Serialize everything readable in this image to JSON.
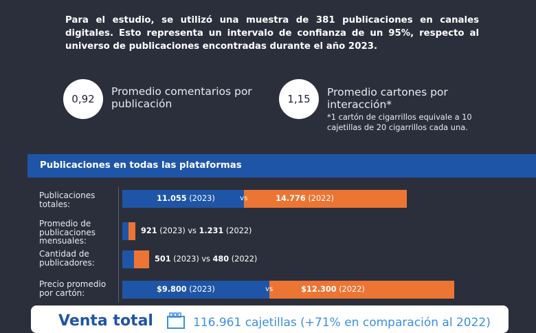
{
  "intro": "Para el estudio, se utilizó una muestra de 381 publicaciones en canales digitales. Esto representa un intervalo de confianza de un 95%, respecto al universo de publicaciones encontradas durante el año 2023.",
  "stats": [
    {
      "value": "0,92",
      "label": "Promedio comentarios por publicación",
      "note": ""
    },
    {
      "value": "1,15",
      "label": "Promedio cartones por interacción*",
      "note": "*1 cartón de cigarrillos equivale a 10 cajetillas de 20 cigarrillos cada una."
    }
  ],
  "section_title": "Publicaciones en todas las plataformas",
  "chart_data": {
    "type": "bar",
    "title": "Publicaciones en todas las plataformas",
    "series_names": [
      "(2023)",
      "(2022)"
    ],
    "colors": {
      "2023": "#1f55a6",
      "2022": "#ec7533"
    },
    "rows": [
      {
        "label": "Publicaciones totales:",
        "v2023": 11055,
        "v2022": 14776,
        "t2023": "11.055",
        "t2022": "14.776",
        "inside": true
      },
      {
        "label": "Promedio de publicaciones mensuales:",
        "v2023": 921,
        "v2022": 1231,
        "t2023": "921",
        "t2022": "1.231",
        "inside": false
      },
      {
        "label": "Cantidad de publicadores:",
        "v2023": 501,
        "v2022": 480,
        "t2023": "501",
        "t2022": "480",
        "inside": false
      },
      {
        "label": "Precio promedio por cartón:",
        "v2023": 9800,
        "v2022": 12300,
        "t2023": "$9.800",
        "t2022": "$12.300",
        "inside": true
      }
    ],
    "vs_text": "vs",
    "year_2023": "(2023)",
    "year_2022": "(2022)"
  },
  "footer": {
    "title": "Venta total",
    "text": "116.961 cajetillas (+71% en comparación al 2022)",
    "icon": "cigarette-pack-icon"
  }
}
